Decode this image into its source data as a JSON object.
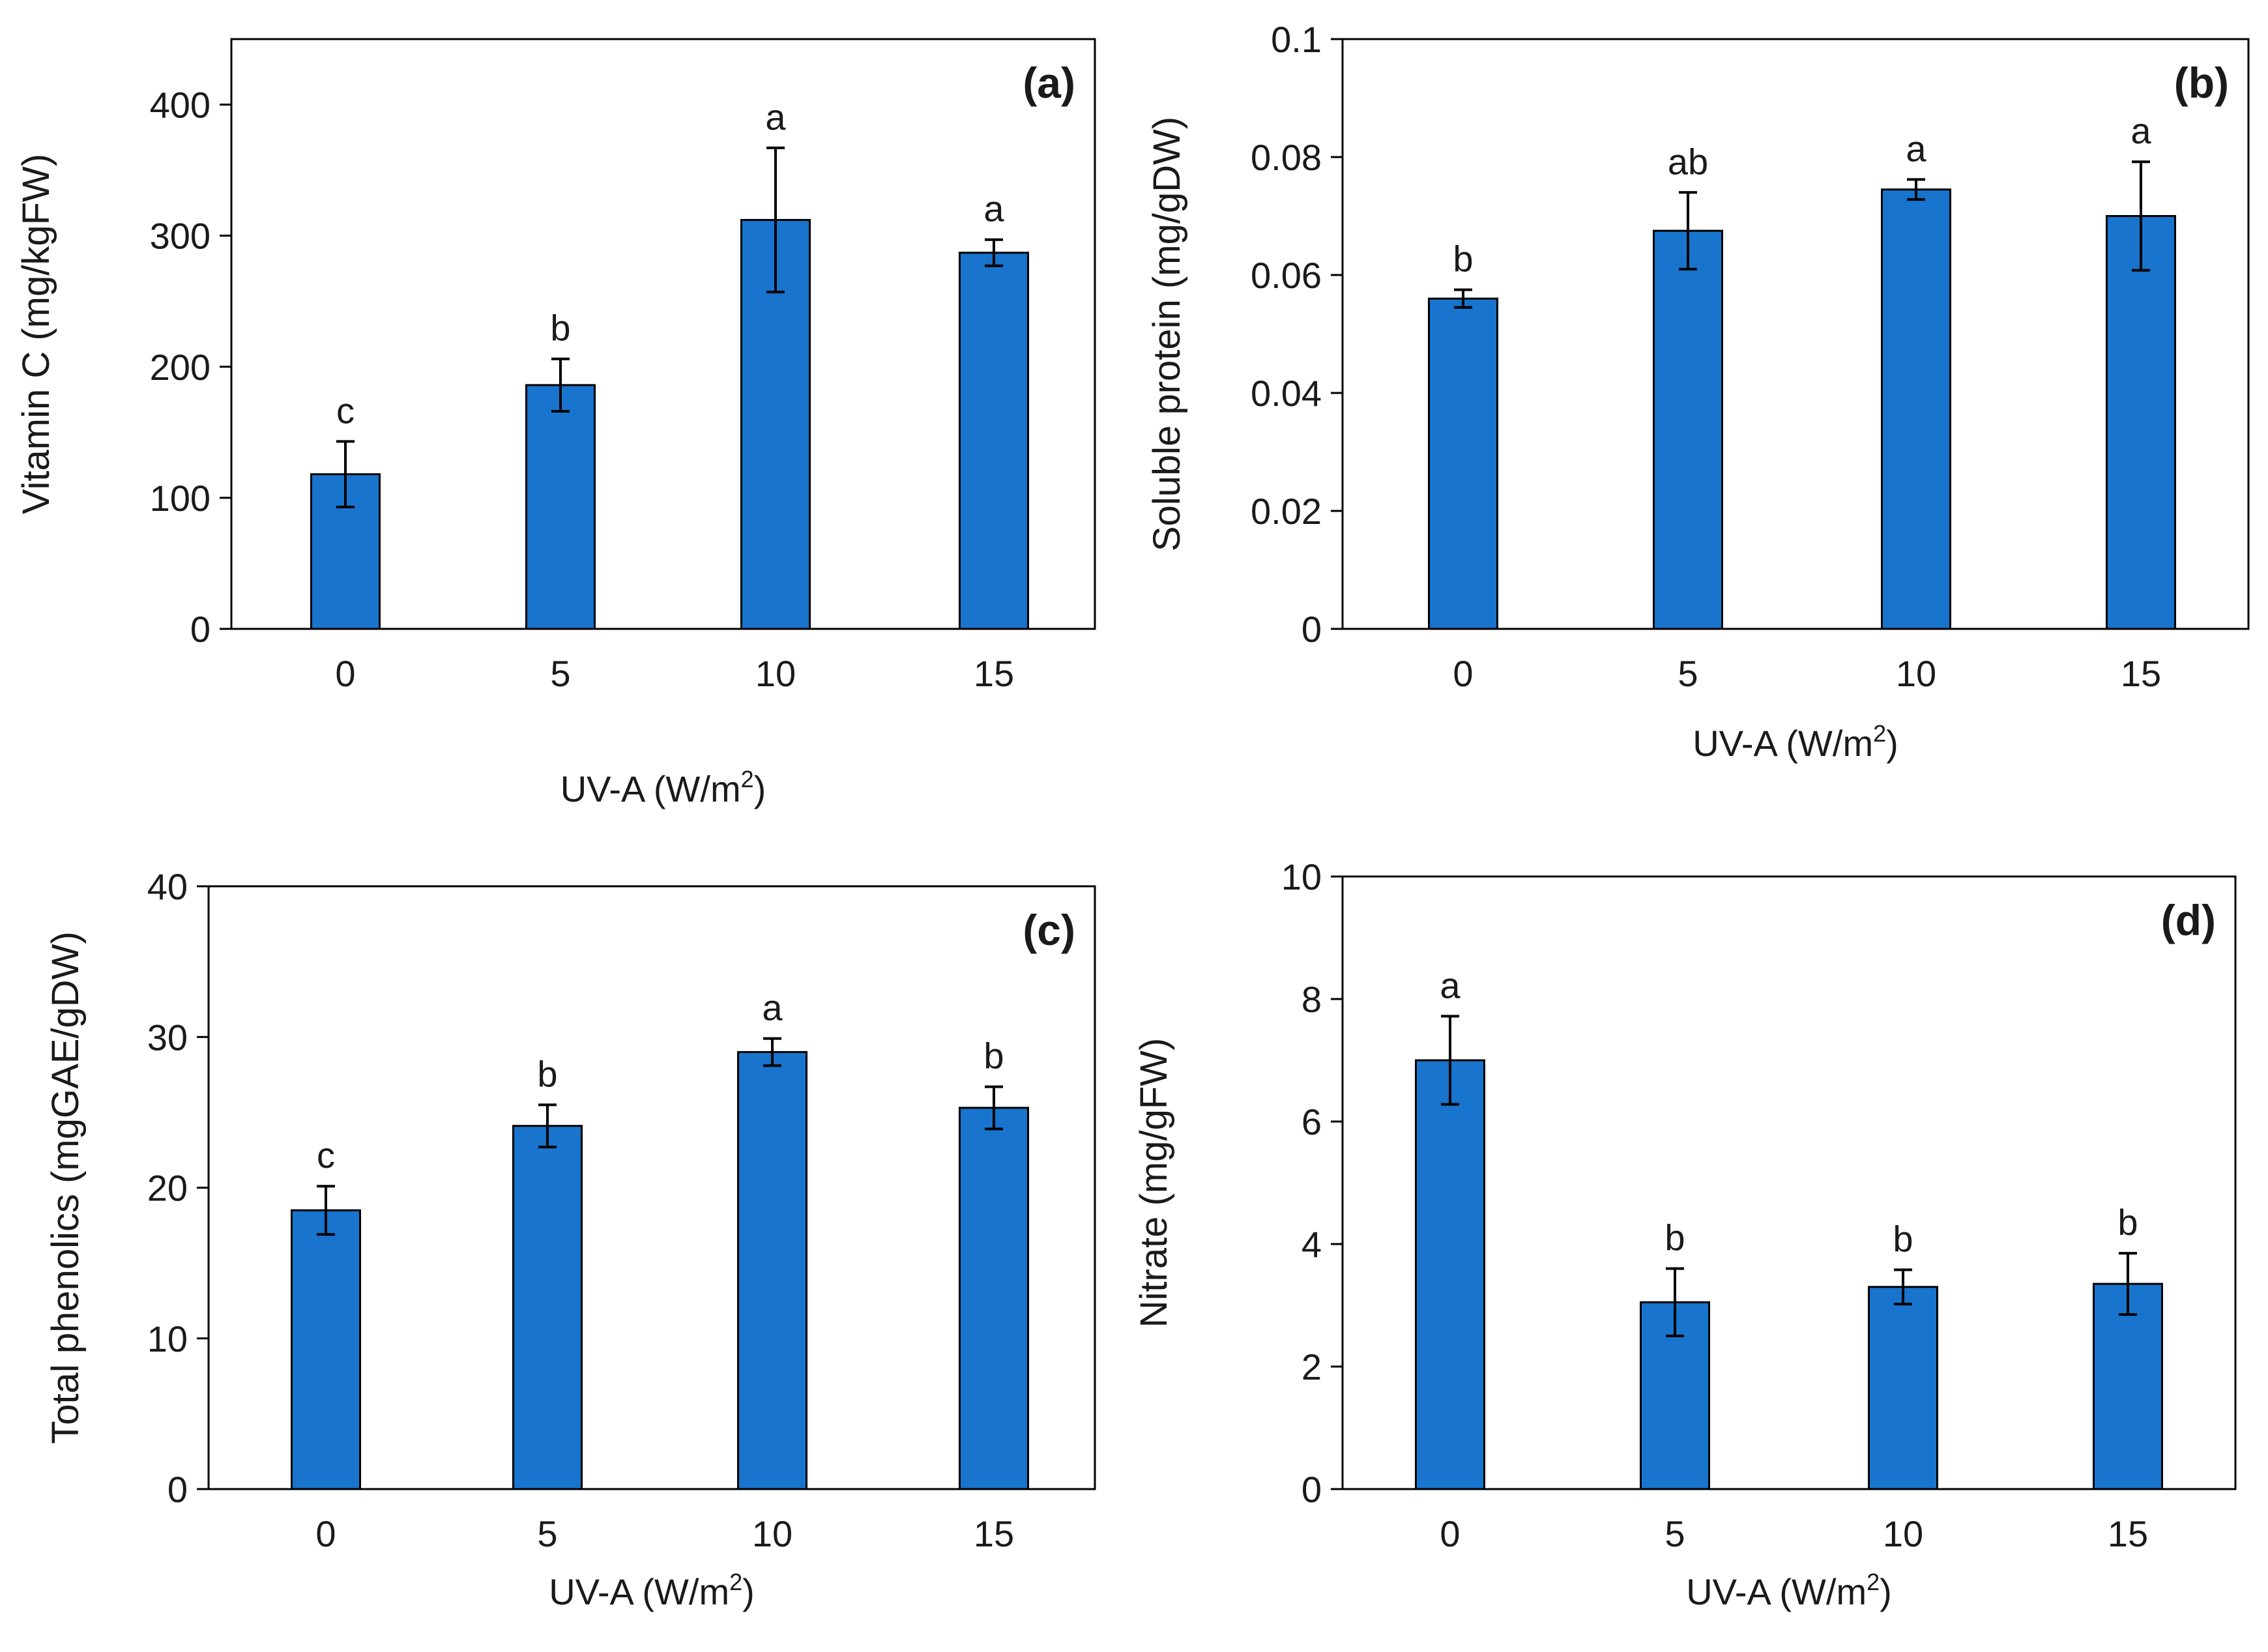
{
  "figure": {
    "bar_color": "#1874cd",
    "bar_stroke": "#000000",
    "axis_color": "#000000"
  },
  "chart_data": [
    {
      "type": "bar",
      "panel": "(a)",
      "categories": [
        "0",
        "5",
        "10",
        "15"
      ],
      "values": [
        118,
        186,
        312,
        287
      ],
      "errors": [
        25,
        20,
        55,
        10
      ],
      "letters": [
        "c",
        "b",
        "a",
        "a"
      ],
      "ylabel": "Vitamin C (mg/kgFW)",
      "xlabel_main": "UV-A  (W/m",
      "xlabel_sup": "2",
      "xlabel_end": ")",
      "ylim": [
        0,
        450
      ],
      "yticks": [
        0,
        100,
        200,
        300,
        400
      ],
      "ytick_labels": [
        "0",
        "100",
        "200",
        "300",
        "400"
      ],
      "grid": false,
      "legend": "none"
    },
    {
      "type": "bar",
      "panel": "(b)",
      "categories": [
        "0",
        "5",
        "10",
        "15"
      ],
      "values": [
        0.056,
        0.0675,
        0.0745,
        0.07
      ],
      "errors": [
        0.0015,
        0.0065,
        0.0017,
        0.0092
      ],
      "letters": [
        "b",
        "ab",
        "a",
        "a"
      ],
      "ylabel": "Soluble protein (mg/gDW)",
      "xlabel_main": "UV-A  (W/m",
      "xlabel_sup": "2",
      "xlabel_end": ")",
      "ylim": [
        0,
        0.1
      ],
      "yticks": [
        0,
        0.02,
        0.04,
        0.06,
        0.08,
        0.1
      ],
      "ytick_labels": [
        "0",
        "0.02",
        "0.04",
        "0.06",
        "0.08",
        "0.1"
      ],
      "grid": false,
      "legend": "none"
    },
    {
      "type": "bar",
      "panel": "(c)",
      "categories": [
        "0",
        "5",
        "10",
        "15"
      ],
      "values": [
        18.5,
        24.1,
        29.0,
        25.3
      ],
      "errors": [
        1.6,
        1.4,
        0.9,
        1.4
      ],
      "letters": [
        "c",
        "b",
        "a",
        "b"
      ],
      "ylabel": "Total phenolics (mgGAE/gDW)",
      "xlabel_main": "UV-A  (W/m",
      "xlabel_sup": "2",
      "xlabel_end": ")",
      "ylim": [
        0,
        40
      ],
      "yticks": [
        0,
        10,
        20,
        30,
        40
      ],
      "ytick_labels": [
        "0",
        "10",
        "20",
        "30",
        "40"
      ],
      "grid": false,
      "legend": "none"
    },
    {
      "type": "bar",
      "panel": "(d)",
      "categories": [
        "0",
        "5",
        "10",
        "15"
      ],
      "values": [
        7.0,
        3.05,
        3.3,
        3.35
      ],
      "errors": [
        0.72,
        0.55,
        0.28,
        0.5
      ],
      "letters": [
        "a",
        "b",
        "b",
        "b"
      ],
      "ylabel": "Nitrate (mg/gFW)",
      "xlabel_main": "UV-A  (W/m",
      "xlabel_sup": "2",
      "xlabel_end": ")",
      "ylim": [
        0,
        10
      ],
      "yticks": [
        0,
        2,
        4,
        6,
        8,
        10
      ],
      "ytick_labels": [
        "0",
        "2",
        "4",
        "6",
        "8",
        "10"
      ],
      "grid": false,
      "legend": "none"
    }
  ]
}
